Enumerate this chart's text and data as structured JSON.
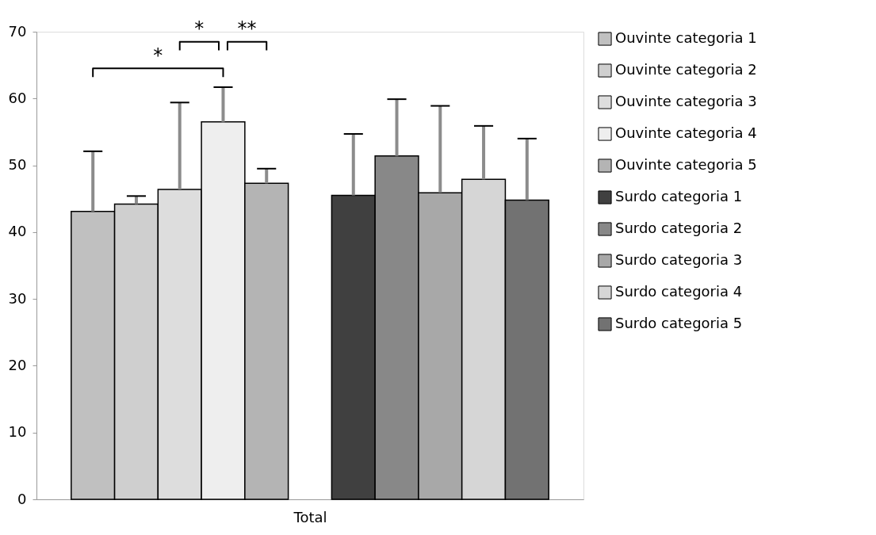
{
  "chart_data": {
    "type": "bar",
    "categories": [
      "Total"
    ],
    "series": [
      {
        "name": "Ouvinte categoria 1",
        "color": "#c0c0c0",
        "values": [
          43.1
        ],
        "errors": [
          [
            43.1,
            52.1
          ]
        ]
      },
      {
        "name": "Ouvinte categoria 2",
        "color": "#cfcfcf",
        "values": [
          44.2
        ],
        "errors": [
          [
            44.2,
            45.4
          ]
        ]
      },
      {
        "name": "Ouvinte categoria 3",
        "color": "#dddddd",
        "values": [
          46.4
        ],
        "errors": [
          [
            46.4,
            59.4
          ]
        ]
      },
      {
        "name": "Ouvinte categoria 4",
        "color": "#eeeeee",
        "values": [
          56.5
        ],
        "errors": [
          [
            56.5,
            61.7
          ]
        ]
      },
      {
        "name": "Ouvinte categoria 5",
        "color": "#b4b4b4",
        "values": [
          47.3
        ],
        "errors": [
          [
            47.3,
            49.5
          ]
        ]
      },
      {
        "name": "Surdo categoria 1",
        "color": "#404040",
        "values": [
          45.5
        ],
        "errors": [
          [
            45.5,
            54.7
          ]
        ]
      },
      {
        "name": "Surdo categoria 2",
        "color": "#888888",
        "values": [
          51.4
        ],
        "errors": [
          [
            51.4,
            59.9
          ]
        ]
      },
      {
        "name": "Surdo categoria 3",
        "color": "#a8a8a8",
        "values": [
          45.9
        ],
        "errors": [
          [
            45.9,
            58.9
          ]
        ]
      },
      {
        "name": "Surdo categoria 4",
        "color": "#d6d6d6",
        "values": [
          47.9
        ],
        "errors": [
          [
            47.9,
            55.9
          ]
        ]
      },
      {
        "name": "Surdo categoria 5",
        "color": "#727272",
        "values": [
          44.8
        ],
        "errors": [
          [
            44.8,
            54.0
          ]
        ]
      }
    ],
    "ylim": [
      0,
      70
    ],
    "yticks": [
      0,
      10,
      20,
      30,
      40,
      50,
      60,
      70
    ],
    "annotations": [
      "*",
      "*",
      "**"
    ],
    "legend": "right",
    "grid": false
  }
}
